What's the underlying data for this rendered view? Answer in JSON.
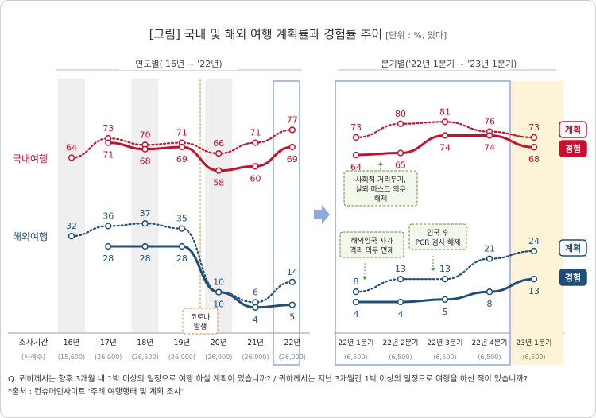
{
  "title": "[그림] 국내 및 해외 여행 계획률과 경험률 추이",
  "unit": "[단위 : %, 있다]",
  "footer": {
    "question": "Q. 귀하께서는 향후 3개월 내 1박 이상의 일정으로 여행 하실 계획이 있습니까? / 귀하께서는 지난 3개월간 1박 이상의 일정으로 여행을 하신 적이 있습니까?",
    "source": "*출처 : 컨슈머인사이트 ‘주례 여행행태 및 계획 조사’"
  },
  "colors": {
    "domestic": "#c8102e",
    "overseas": "#1f4e79",
    "highlight_box": "#8fa9d9",
    "highlight_fill": "#fdf3d6",
    "shade": "#efefef"
  },
  "labels": {
    "row_period": "조사기간",
    "row_samples": "(사례수)",
    "domestic": "국내여행",
    "overseas": "해외여행",
    "legend_plan": "계획",
    "legend_exp": "경험"
  },
  "annotations": {
    "corona": [
      "코로나",
      "발생"
    ],
    "social": [
      "사회적 거리두기,",
      "실외 마스크 의무",
      "해제"
    ],
    "quarantine": [
      "해외입국 자가",
      "격리 의무 면제"
    ],
    "pcr": [
      "입국 후",
      "PCR 검사 해제"
    ]
  },
  "chart_data": [
    {
      "type": "line",
      "title": "연도별('16년 ~ '22년)",
      "categories": [
        "16년",
        "17년",
        "18년",
        "19년",
        "20년",
        "21년",
        "22년"
      ],
      "samples": [
        "(15,600)",
        "(26,000)",
        "(26,500)",
        "(26,000)",
        "(26,000)",
        "(26,000)",
        "(26,000)"
      ],
      "series": [
        {
          "group": "국내여행",
          "name": "계획",
          "style": "dotted",
          "values": [
            64,
            73,
            70,
            71,
            66,
            71,
            77
          ]
        },
        {
          "group": "국내여행",
          "name": "경험",
          "style": "solid",
          "values": [
            null,
            71,
            68,
            69,
            58,
            60,
            69
          ]
        },
        {
          "group": "해외여행",
          "name": "계획",
          "style": "dotted",
          "values": [
            32,
            36,
            37,
            35,
            10,
            6,
            14
          ]
        },
        {
          "group": "해외여행",
          "name": "경험",
          "style": "solid",
          "values": [
            null,
            28,
            28,
            28,
            10,
            4,
            5
          ]
        }
      ]
    },
    {
      "type": "line",
      "title": "분기별('22년 1분기 ~ '23년 1분기)",
      "categories": [
        "22년 1분기",
        "22년 2분기",
        "22년 3분기",
        "22년 4분기",
        "23년 1분기"
      ],
      "samples": [
        "(6,500)",
        "(6,500)",
        "(6,500)",
        "(6,500)",
        "(6,500)"
      ],
      "series": [
        {
          "group": "국내여행",
          "name": "계획",
          "style": "dotted",
          "values": [
            73,
            80,
            81,
            76,
            73
          ]
        },
        {
          "group": "국내여행",
          "name": "경험",
          "style": "solid",
          "values": [
            64,
            65,
            74,
            74,
            68
          ]
        },
        {
          "group": "해외여행",
          "name": "계획",
          "style": "dotted",
          "values": [
            8,
            13,
            13,
            21,
            24
          ]
        },
        {
          "group": "해외여행",
          "name": "경험",
          "style": "solid",
          "values": [
            4,
            4,
            5,
            8,
            13
          ]
        }
      ]
    }
  ]
}
